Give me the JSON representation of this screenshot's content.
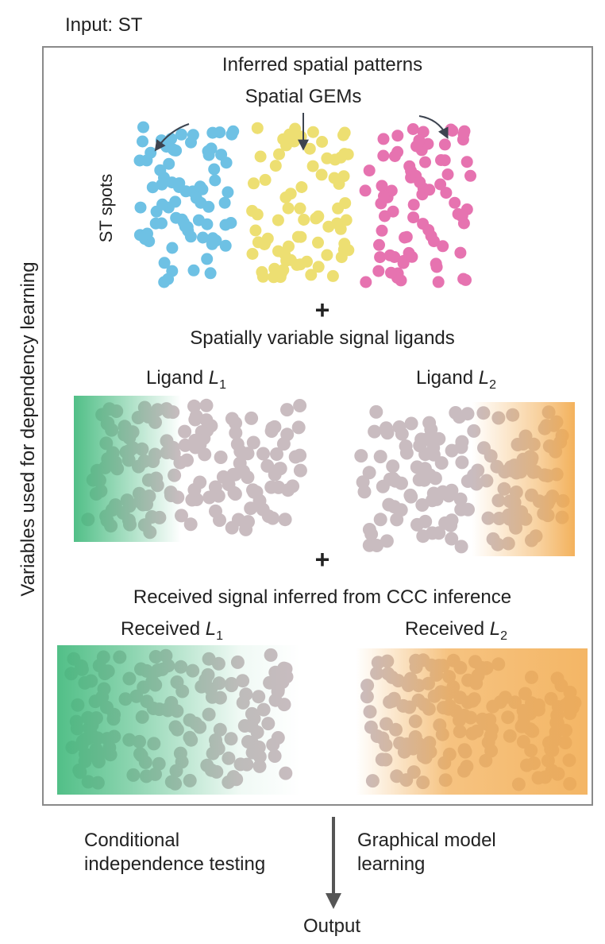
{
  "input_label": "Input: ST",
  "side_label": "Variables used for dependency learning",
  "patterns_title": "Inferred spatial patterns",
  "gems_title": "Spatial GEMs",
  "st_spots_label": "ST spots",
  "plus_symbol": "+",
  "ligands_title": "Spatially variable signal ligands",
  "ligand_word": "Ligand",
  "ligand_var": "L",
  "ligand1_sub": "1",
  "ligand2_sub": "2",
  "received_title": "Received signal inferred from CCC inference",
  "received_word": "Received",
  "left_method_line1": "Conditional",
  "left_method_line2": "independence testing",
  "right_method_line1": "Graphical model",
  "right_method_line2": "learning",
  "output_label": "Output",
  "colors": {
    "blue": "#6ec1e4",
    "yellow": "#eddf72",
    "pink": "#e673b0",
    "grey_dot": "#c9bcc0",
    "green": "#3eb87a",
    "orange": "#f2a94a",
    "frame": "#8a8a8a",
    "arrow": "#555555"
  }
}
